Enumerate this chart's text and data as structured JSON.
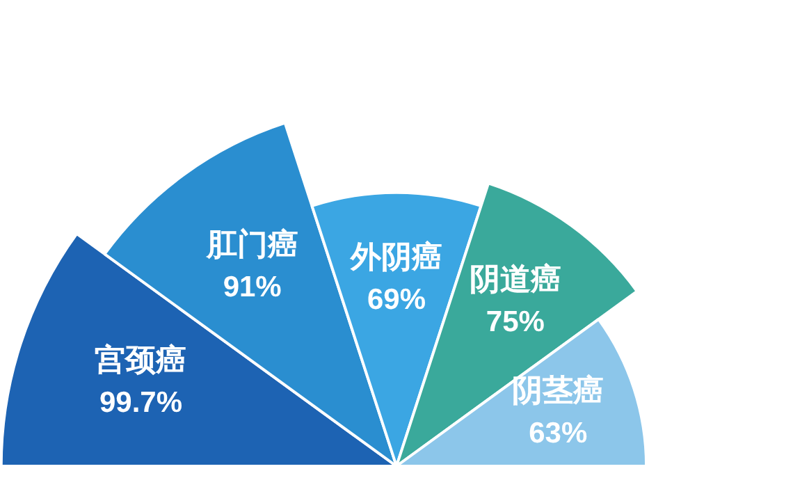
{
  "chart_data": {
    "type": "other",
    "categories": [
      "宫颈癌",
      "肛门癌",
      "外阴癌",
      "阴道癌",
      "阴茎癌"
    ],
    "values": [
      99.7,
      91,
      69,
      75,
      63
    ],
    "value_labels": [
      "99.7%",
      "91%",
      "69%",
      "75%",
      "63%"
    ],
    "colors": [
      "#1d63b3",
      "#2a8ed0",
      "#3ba6e3",
      "#3aa99b",
      "#8cc6ea"
    ]
  }
}
